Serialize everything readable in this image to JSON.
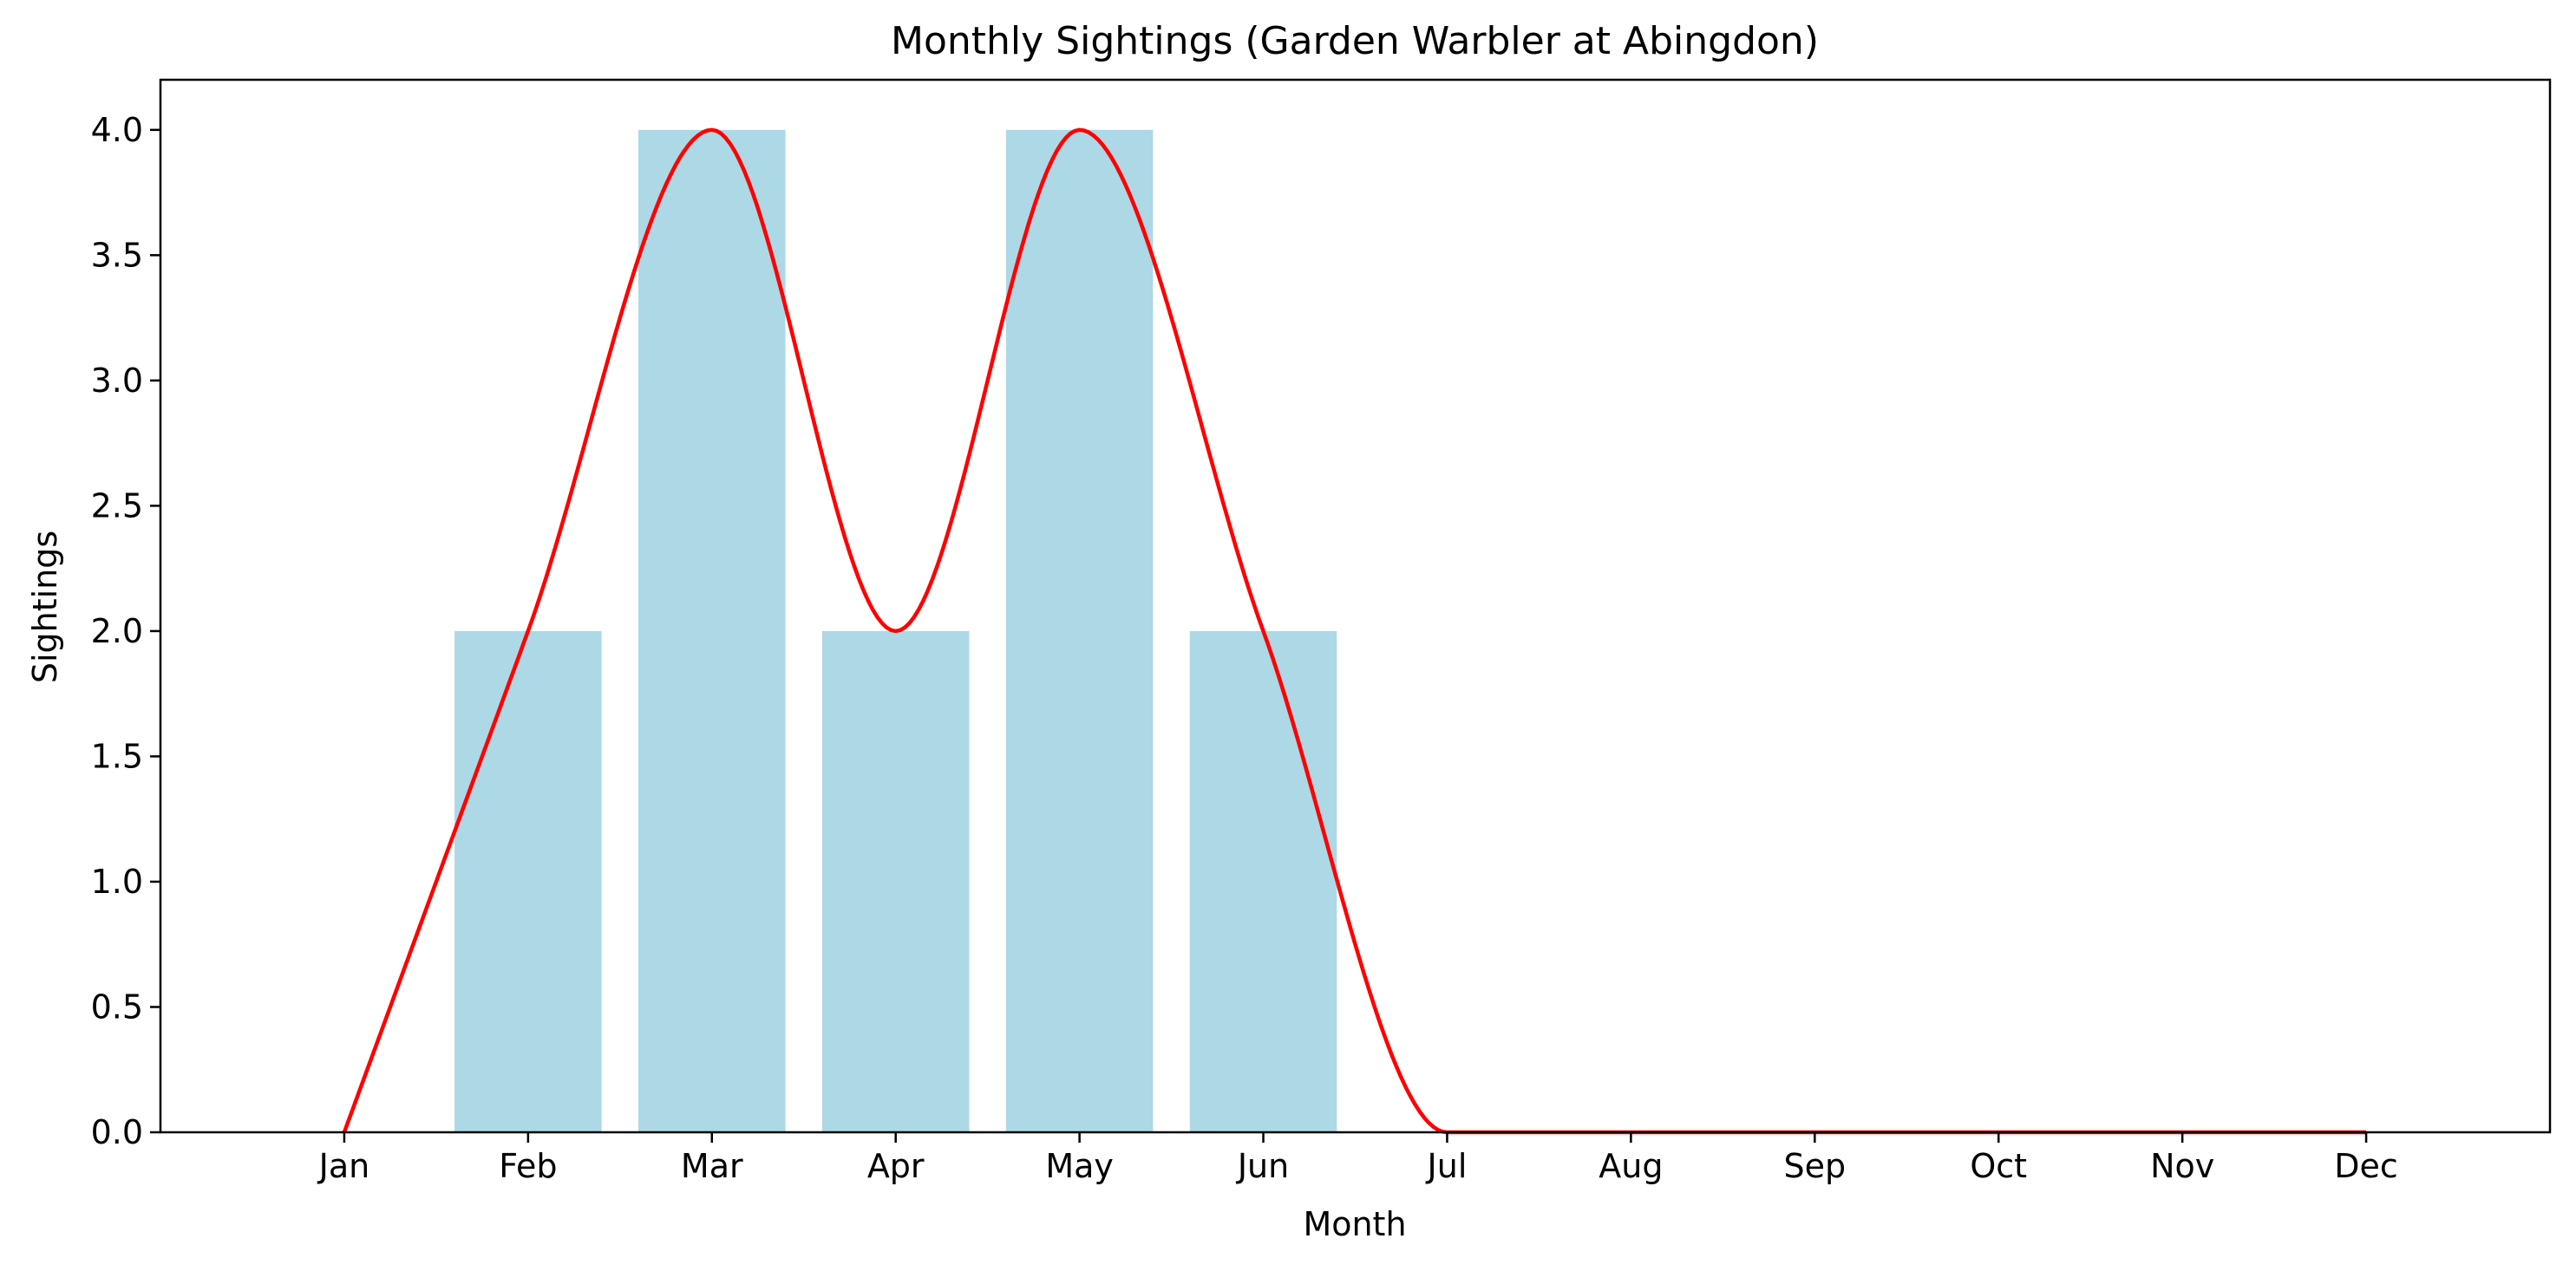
{
  "chart_data": {
    "type": "bar",
    "title": "Monthly Sightings (Garden Warbler at Abingdon)",
    "xlabel": "Month",
    "ylabel": "Sightings",
    "categories": [
      "Jan",
      "Feb",
      "Mar",
      "Apr",
      "May",
      "Jun",
      "Jul",
      "Aug",
      "Sep",
      "Oct",
      "Nov",
      "Dec"
    ],
    "values": [
      0,
      2,
      4,
      2,
      4,
      2,
      0,
      0,
      0,
      0,
      0,
      0
    ],
    "ylim": [
      0,
      4.2
    ],
    "yticks": [
      "0.0",
      "0.5",
      "1.0",
      "1.5",
      "2.0",
      "2.5",
      "3.0",
      "3.5",
      "4.0"
    ],
    "grid": false,
    "colors": {
      "bars": "#add8e6",
      "line": "#ff0000"
    },
    "overlay": {
      "type": "line",
      "style": "smoothed",
      "values": [
        0,
        2,
        4,
        2,
        4,
        2,
        0,
        0,
        0,
        0,
        0,
        0
      ]
    }
  }
}
